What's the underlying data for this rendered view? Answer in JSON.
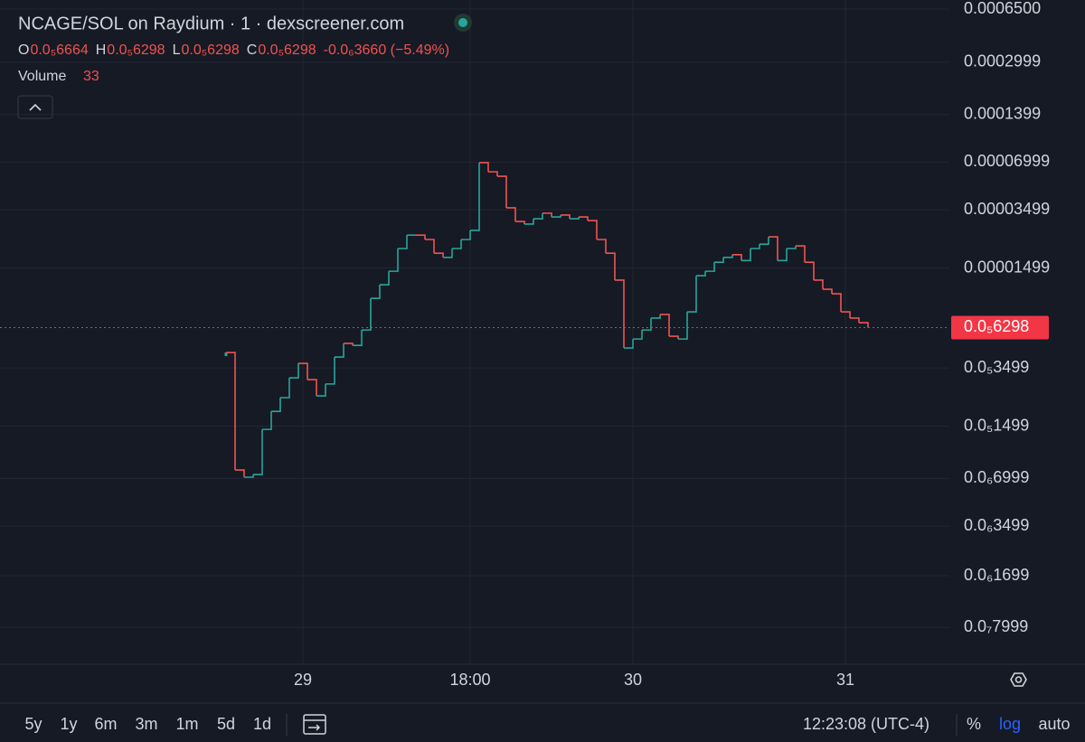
{
  "header": {
    "title": "NCAGE/SOL on Raydium · 1 · dexscreener.com",
    "ohlc": [
      {
        "key": "O",
        "value": "0.0₅6664"
      },
      {
        "key": "H",
        "value": "0.0₅6298"
      },
      {
        "key": "L",
        "value": "0.0₅6298"
      },
      {
        "key": "C",
        "value": "0.0₅6298"
      }
    ],
    "change": "-0.0₆3660 (−5.49%)",
    "volume_label": "Volume",
    "volume_value": "33"
  },
  "toolbar": {
    "ranges": [
      "5y",
      "1y",
      "6m",
      "3m",
      "1m",
      "5d",
      "1d"
    ],
    "time": "12:23:08 (UTC-4)",
    "options": [
      "%",
      "log",
      "auto"
    ]
  },
  "chart_data": {
    "type": "candle-line",
    "log_scale": true,
    "grid": true,
    "up_color": "#26a69a",
    "down_color": "#ef5350",
    "values": [
      4.38e-06,
      7.92e-07,
      7.13e-07,
      7.41e-07,
      1.43e-06,
      1.86e-06,
      2.27e-06,
      3.03e-06,
      3.74e-06,
      2.95e-06,
      2.33e-06,
      2.77e-06,
      4.1e-06,
      5e-06,
      4.86e-06,
      6.08e-06,
      9.64e-06,
      1.175e-05,
      1.43e-05,
      1.99e-05,
      2.42e-05,
      2.42e-05,
      2.27e-05,
      1.86e-05,
      1.75e-05,
      1.99e-05,
      2.27e-05,
      2.59e-05,
      6.95e-05,
      6.08e-05,
      5.7e-05,
      3.6e-05,
      2.95e-05,
      2.84e-05,
      3.07e-05,
      3.33e-05,
      3.15e-05,
      3.24e-05,
      3.07e-05,
      3.15e-05,
      2.99e-05,
      2.27e-05,
      1.86e-05,
      1.256e-05,
      4.68e-06,
      5.33e-06,
      6.08e-06,
      7.23e-06,
      7.62e-06,
      5.55e-06,
      5.33e-06,
      7.92e-06,
      1.34e-05,
      1.43e-05,
      1.63e-05,
      1.75e-05,
      1.82e-05,
      1.67e-05,
      1.99e-05,
      2.12e-05,
      2.36e-05,
      1.67e-05,
      1.99e-05,
      2.07e-05,
      1.63e-05,
      1.256e-05,
      1.1e-05,
      1.03e-05,
      7.92e-06,
      7.23e-06,
      6.76e-06,
      6.298e-06
    ],
    "xlim": [
      -25,
      80
    ],
    "xticks": [
      {
        "value": 8.5,
        "label": "29"
      },
      {
        "value": 27,
        "label": "18:00"
      },
      {
        "value": 45,
        "label": "30"
      },
      {
        "value": 68.5,
        "label": "31"
      }
    ],
    "ylim": [
      4.68e-08,
      0.000742
    ],
    "yticks": [
      {
        "value": 0.00065,
        "label": "0.0006500"
      },
      {
        "value": 0.0002999,
        "label": "0.0002999"
      },
      {
        "value": 0.0001399,
        "label": "0.0001399"
      },
      {
        "value": 6.999e-05,
        "label": "0.00006999"
      },
      {
        "value": 3.499e-05,
        "label": "0.00003499"
      },
      {
        "value": 1.499e-05,
        "label": "0.00001499"
      },
      {
        "value": 3.499e-06,
        "label": "0.0₅3499"
      },
      {
        "value": 1.499e-06,
        "label": "0.0₅1499"
      },
      {
        "value": 6.999e-07,
        "label": "0.0₆6999"
      },
      {
        "value": 3.499e-07,
        "label": "0.0₆3499"
      },
      {
        "value": 1.699e-07,
        "label": "0.0₆1699"
      },
      {
        "value": 7.999e-08,
        "label": "0.0₇7999"
      }
    ],
    "current_price": {
      "value": 6.298e-06,
      "label": "0.0₅6298"
    },
    "current_color": "#f23645"
  }
}
